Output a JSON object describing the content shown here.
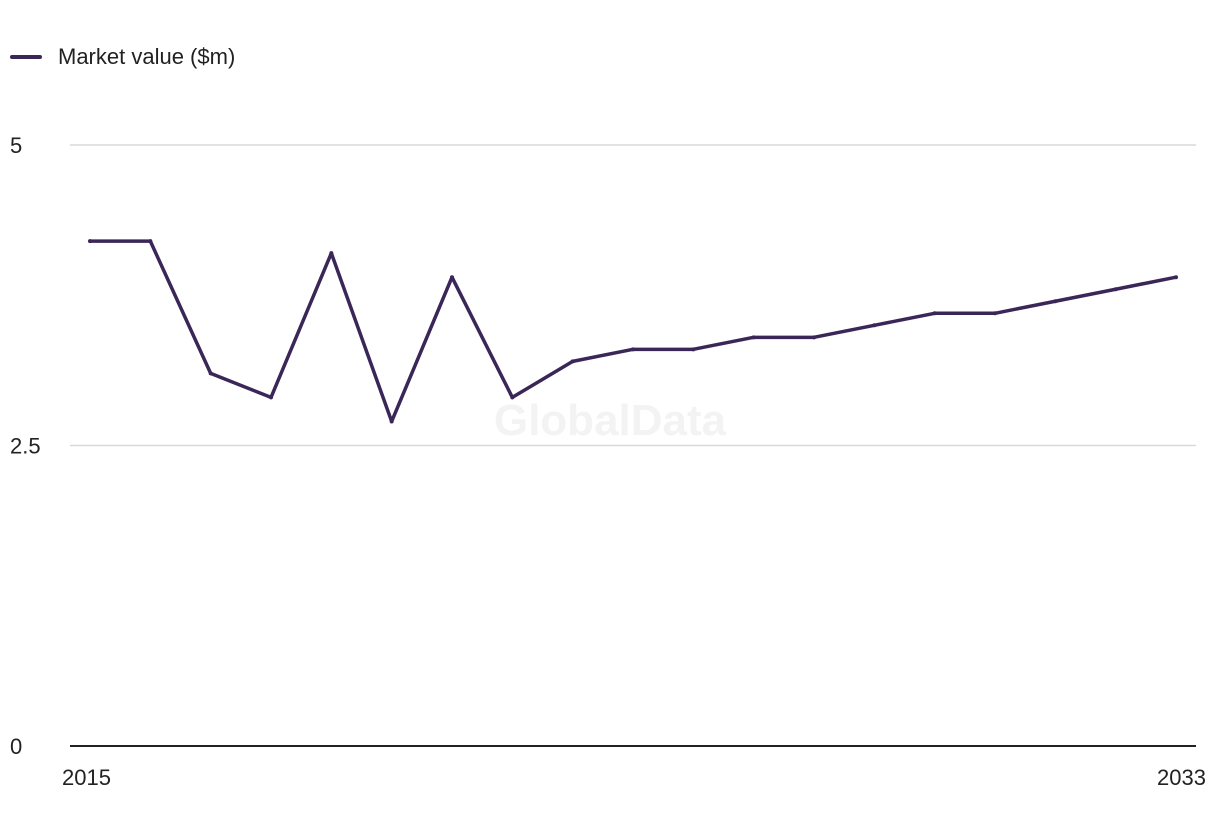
{
  "chart_data": {
    "type": "line",
    "title": "",
    "xlabel": "",
    "ylabel": "",
    "x": [
      2015,
      2016,
      2017,
      2018,
      2019,
      2020,
      2021,
      2022,
      2023,
      2024,
      2025,
      2026,
      2027,
      2028,
      2029,
      2030,
      2031,
      2032,
      2033
    ],
    "x_tick_labels": [
      "2015",
      "2033"
    ],
    "y_tick_labels": [
      "0",
      "2.5",
      "5"
    ],
    "y_ticks": [
      0,
      2.5,
      5
    ],
    "ylim": [
      0,
      5
    ],
    "grid": true,
    "legend_position": "top-left",
    "series": [
      {
        "name": "Market value ($m)",
        "color": "#3a2758",
        "values": [
          4.2,
          4.2,
          3.1,
          2.9,
          4.1,
          2.7,
          3.9,
          2.9,
          3.2,
          3.3,
          3.3,
          3.4,
          3.4,
          3.5,
          3.6,
          3.6,
          3.7,
          3.8,
          3.9
        ]
      }
    ],
    "watermark": "GlobalData"
  },
  "colors": {
    "line": "#3a2758",
    "grid": "#d9d9d9",
    "axis": "#222222",
    "watermark": "#f3f3f3"
  }
}
